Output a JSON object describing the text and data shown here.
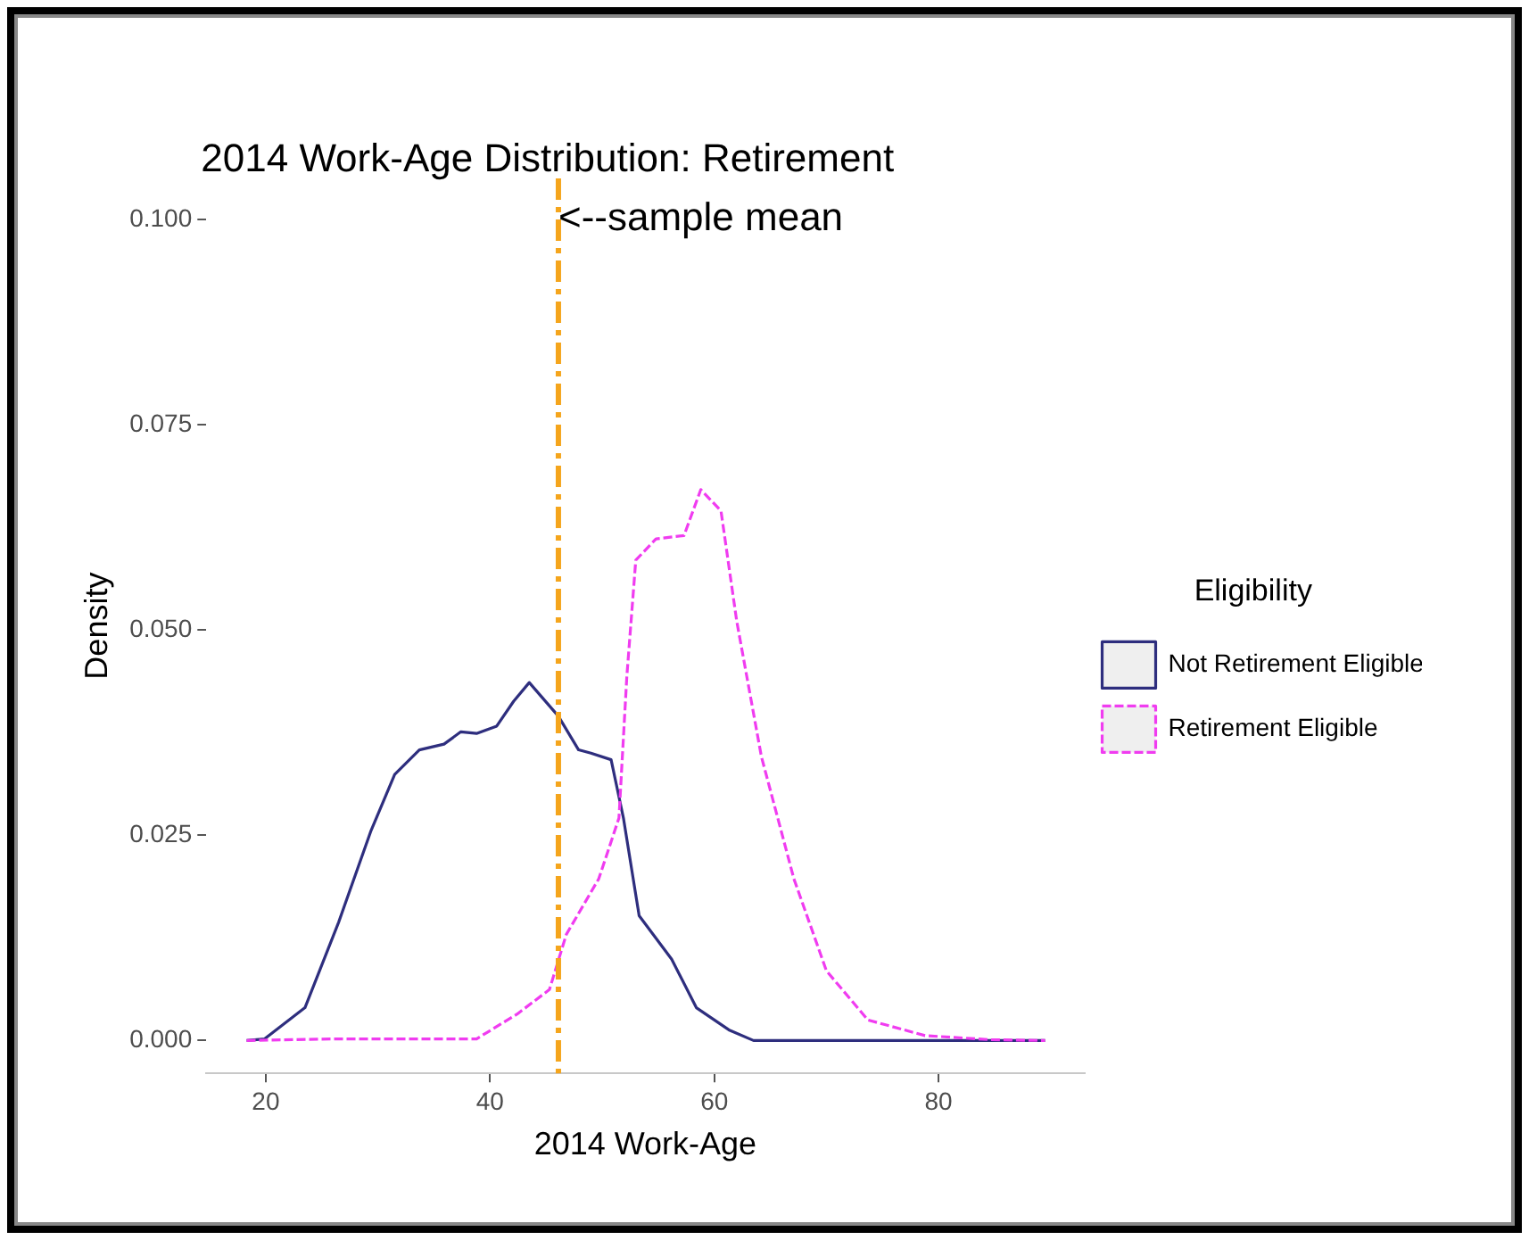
{
  "chart_data": {
    "type": "line",
    "title": "2014 Work-Age Distribution: Retirement",
    "xlabel": "2014 Work-Age",
    "ylabel": "Density",
    "legend_title": "Eligibility",
    "legend": "right",
    "grid": false,
    "xlim": [
      14.7,
      93
    ],
    "xticks": [
      20,
      40,
      60,
      80
    ],
    "ylim": [
      -0.004,
      0.105
    ],
    "yticks": [
      {
        "value": 0,
        "label": "0.000"
      },
      {
        "value": 0.025,
        "label": "0.025"
      },
      {
        "value": 0.05,
        "label": "0.050"
      },
      {
        "value": 0.075,
        "label": "0.075"
      },
      {
        "value": 0.1,
        "label": "0.100"
      }
    ],
    "series": [
      {
        "name": "Not Retirement Eligible",
        "color": "#2e2e7e",
        "line_style": "solid",
        "x": [
          18.3,
          19.9,
          23.5,
          26.5,
          29.4,
          31.5,
          33.7,
          35.9,
          37.4,
          38.8,
          40.6,
          42.1,
          43.5,
          46.1,
          47.9,
          49.0,
          50.8,
          51.9,
          53.3,
          56.2,
          58.4,
          61.3,
          63.5,
          89.5
        ],
        "values": [
          0,
          0.0002,
          0.004,
          0.0144,
          0.0256,
          0.0324,
          0.0354,
          0.0361,
          0.0376,
          0.0374,
          0.0383,
          0.0413,
          0.0436,
          0.0395,
          0.0354,
          0.035,
          0.0342,
          0.0271,
          0.0152,
          0.0099,
          0.004,
          0.0013,
          0,
          0
        ]
      },
      {
        "name": "Retirement Eligible",
        "color": "#f03cf0",
        "line_style": "dashed",
        "x": [
          18.3,
          26.5,
          38.8,
          42.4,
          45.3,
          46.8,
          49.7,
          51.5,
          52.2,
          53.0,
          54.8,
          57.3,
          58.8,
          60.6,
          62.0,
          64.2,
          67.1,
          70.0,
          73.7,
          78.8,
          84.6,
          89.5
        ],
        "values": [
          0,
          0.0002,
          0.0002,
          0.0032,
          0.0062,
          0.0129,
          0.0197,
          0.0271,
          0.0443,
          0.0585,
          0.0611,
          0.0615,
          0.0671,
          0.0645,
          0.0511,
          0.0346,
          0.0197,
          0.0085,
          0.0025,
          0.0006,
          0.0001,
          0
        ]
      }
    ],
    "ref_lines": [
      {
        "axis": "x",
        "value": 46.1,
        "color": "#f5a51c",
        "line_style": "dashdot"
      }
    ],
    "annotations": [
      {
        "text": "<--sample mean",
        "x": 46.1,
        "y": 0.1
      }
    ]
  }
}
